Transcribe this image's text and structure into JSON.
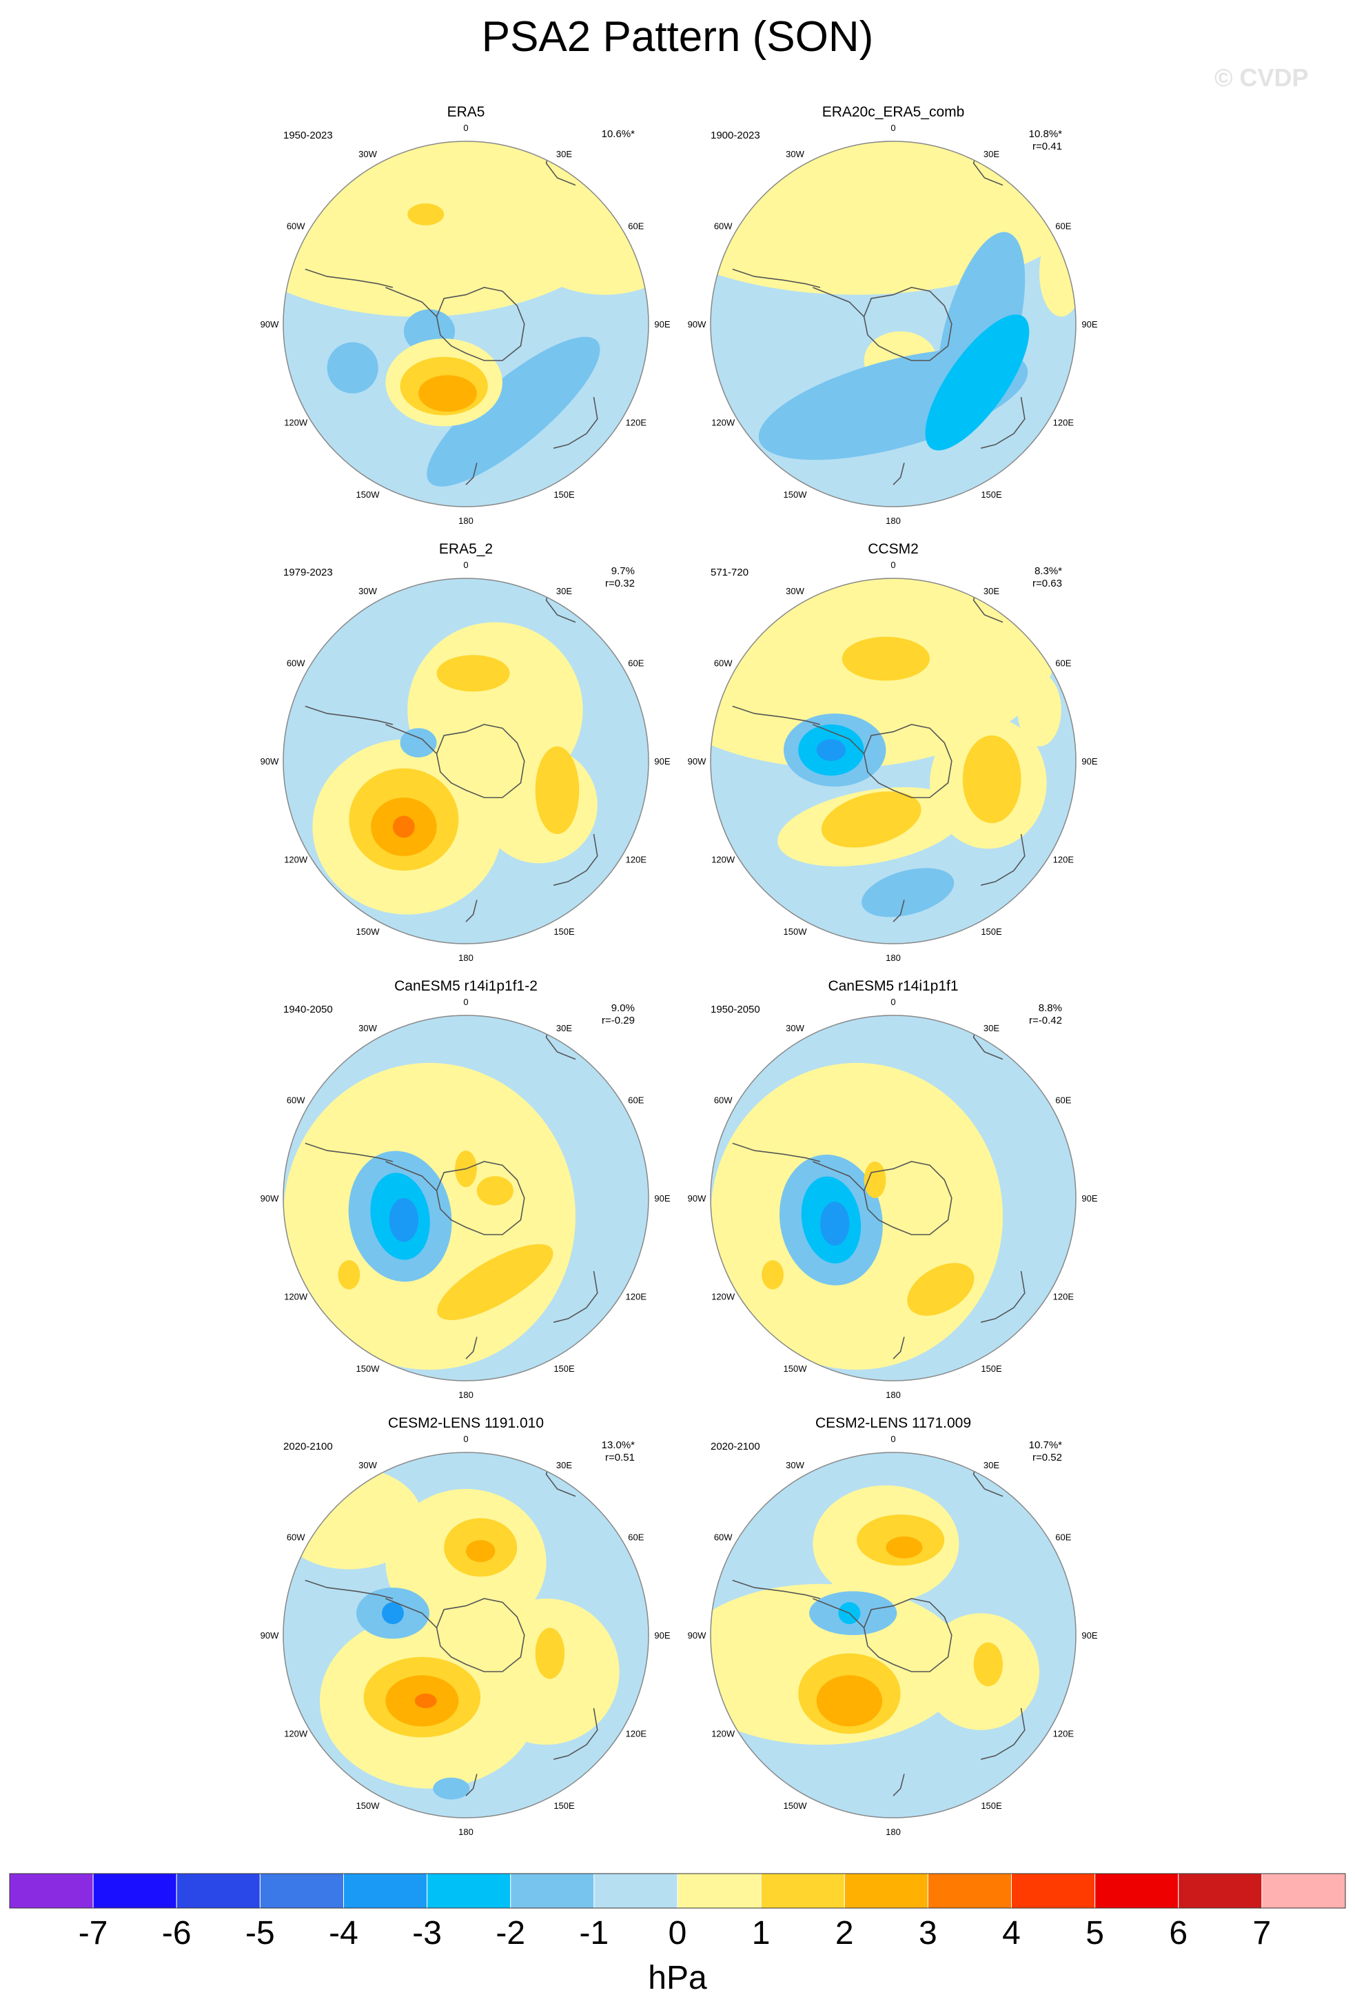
{
  "title": "PSA2 Pattern (SON)",
  "watermark": "© CVDP",
  "units": "hPa",
  "colors": {
    "levels": [
      "#8a2be2",
      "#1b0fff",
      "#2a47e8",
      "#3b78e8",
      "#1a9af5",
      "#00c0f8",
      "#77c4ef",
      "#b6dff2",
      "#fff79a",
      "#ffd52e",
      "#ffb000",
      "#ff7a00",
      "#ff3b00",
      "#ee0000",
      "#cc1a1a",
      "#ffb0b0"
    ],
    "land_outline": "#555555"
  },
  "colorbar": {
    "labels": [
      "-7",
      "-6",
      "-5",
      "-4",
      "-3",
      "-2",
      "-1",
      "0",
      "1",
      "2",
      "3",
      "4",
      "5",
      "6",
      "7"
    ]
  },
  "longitude_labels": [
    "0",
    "30E",
    "60E",
    "90E",
    "120E",
    "150E",
    "180",
    "150W",
    "120W",
    "90W",
    "60W",
    "30W"
  ],
  "panels": [
    {
      "name": "ERA5",
      "period": "1950-2023",
      "variance": "10.6%*",
      "corr": "",
      "blobs": [
        {
          "t": "yellow",
          "c": [
            0.37,
            0.12
          ],
          "r": [
            0.62,
            0.36
          ],
          "a": 0
        },
        {
          "t": "yellow",
          "c": [
            0.88,
            0.22
          ],
          "r": [
            0.26,
            0.2
          ],
          "a": 0
        },
        {
          "t": "yellow",
          "c": [
            0.84,
            0.02
          ],
          "r": [
            0.12,
            0.06
          ],
          "a": 0
        },
        {
          "t": "gold",
          "c": [
            0.39,
            0.2
          ],
          "r": [
            0.05,
            0.03
          ],
          "a": 0
        },
        {
          "t": "blue",
          "c": [
            0.4,
            0.52
          ],
          "r": [
            0.07,
            0.06
          ],
          "a": 0
        },
        {
          "t": "blue",
          "c": [
            0.19,
            0.62
          ],
          "r": [
            0.07,
            0.07
          ],
          "a": 0
        },
        {
          "t": "blue",
          "c": [
            0.63,
            0.74
          ],
          "r": [
            0.3,
            0.09
          ],
          "a": -40
        },
        {
          "t": "yellow",
          "c": [
            0.44,
            0.66
          ],
          "r": [
            0.16,
            0.12
          ],
          "a": 0
        },
        {
          "t": "gold",
          "c": [
            0.44,
            0.67
          ],
          "r": [
            0.12,
            0.08
          ],
          "a": 0
        },
        {
          "t": "orange",
          "c": [
            0.45,
            0.69
          ],
          "r": [
            0.08,
            0.05
          ],
          "a": 0
        }
      ]
    },
    {
      "name": "ERA20c_ERA5_comb",
      "period": "1900-2023",
      "variance": "10.8%*",
      "corr": "r=0.41",
      "blobs": [
        {
          "t": "yellow",
          "c": [
            0.4,
            0.1
          ],
          "r": [
            0.68,
            0.32
          ],
          "a": 0
        },
        {
          "t": "yellow",
          "c": [
            0.96,
            0.36
          ],
          "r": [
            0.06,
            0.12
          ],
          "a": 0
        },
        {
          "t": "yellow",
          "c": [
            0.52,
            0.6
          ],
          "r": [
            0.1,
            0.08
          ],
          "a": 0
        },
        {
          "t": "blue",
          "c": [
            0.5,
            0.72
          ],
          "r": [
            0.38,
            0.12
          ],
          "a": -15
        },
        {
          "t": "blue",
          "c": [
            0.74,
            0.52
          ],
          "r": [
            0.1,
            0.28
          ],
          "a": 15
        },
        {
          "t": "blue2",
          "c": [
            0.73,
            0.66
          ],
          "r": [
            0.08,
            0.22
          ],
          "a": 35
        }
      ]
    },
    {
      "name": "ERA5_2",
      "period": "1979-2023",
      "variance": "9.7%",
      "corr": "r=0.32",
      "blobs": [
        {
          "t": "yellow",
          "c": [
            0.58,
            0.36
          ],
          "r": [
            0.24,
            0.24
          ],
          "a": 0
        },
        {
          "t": "yellow",
          "c": [
            0.7,
            0.62
          ],
          "r": [
            0.16,
            0.16
          ],
          "a": 0
        },
        {
          "t": "yellow",
          "c": [
            0.34,
            0.68
          ],
          "r": [
            0.26,
            0.24
          ],
          "a": 0
        },
        {
          "t": "gold",
          "c": [
            0.52,
            0.26
          ],
          "r": [
            0.1,
            0.05
          ],
          "a": 0
        },
        {
          "t": "gold",
          "c": [
            0.75,
            0.58
          ],
          "r": [
            0.06,
            0.12
          ],
          "a": 0
        },
        {
          "t": "blue",
          "c": [
            0.37,
            0.45
          ],
          "r": [
            0.05,
            0.04
          ],
          "a": 0
        },
        {
          "t": "gold",
          "c": [
            0.33,
            0.66
          ],
          "r": [
            0.15,
            0.14
          ],
          "a": 0
        },
        {
          "t": "orange",
          "c": [
            0.33,
            0.68
          ],
          "r": [
            0.09,
            0.08
          ],
          "a": 0
        },
        {
          "t": "orange2",
          "c": [
            0.33,
            0.68
          ],
          "r": [
            0.03,
            0.03
          ],
          "a": 0
        }
      ]
    },
    {
      "name": "CCSM2",
      "period": "571-720",
      "variance": "8.3%*",
      "corr": "r=0.63",
      "blobs": [
        {
          "t": "yellow",
          "c": [
            0.35,
            0.18
          ],
          "r": [
            0.6,
            0.34
          ],
          "a": 0
        },
        {
          "t": "yellow",
          "c": [
            0.9,
            0.36
          ],
          "r": [
            0.06,
            0.1
          ],
          "a": 0
        },
        {
          "t": "yellow",
          "c": [
            0.76,
            0.56
          ],
          "r": [
            0.16,
            0.18
          ],
          "a": 0
        },
        {
          "t": "gold",
          "c": [
            0.48,
            0.22
          ],
          "r": [
            0.12,
            0.06
          ],
          "a": 0
        },
        {
          "t": "gold",
          "c": [
            0.77,
            0.55
          ],
          "r": [
            0.08,
            0.12
          ],
          "a": 0
        },
        {
          "t": "yellow",
          "c": [
            0.44,
            0.68
          ],
          "r": [
            0.26,
            0.1
          ],
          "a": -10
        },
        {
          "t": "gold",
          "c": [
            0.44,
            0.66
          ],
          "r": [
            0.14,
            0.07
          ],
          "a": -15
        },
        {
          "t": "blue",
          "c": [
            0.34,
            0.47
          ],
          "r": [
            0.14,
            0.1
          ],
          "a": 0
        },
        {
          "t": "blue2",
          "c": [
            0.33,
            0.47
          ],
          "r": [
            0.09,
            0.07
          ],
          "a": 0
        },
        {
          "t": "blue3",
          "c": [
            0.33,
            0.47
          ],
          "r": [
            0.04,
            0.03
          ],
          "a": 0
        },
        {
          "t": "blue",
          "c": [
            0.54,
            0.86
          ],
          "r": [
            0.13,
            0.06
          ],
          "a": -15
        }
      ]
    },
    {
      "name": "CanESM5 r14i1p1f1-2",
      "period": "1940-2050",
      "variance": "9.0%",
      "corr": "r=-0.29",
      "blobs": [
        {
          "t": "yellow",
          "c": [
            0.4,
            0.55
          ],
          "r": [
            0.4,
            0.42
          ],
          "a": 0
        },
        {
          "t": "blue",
          "c": [
            0.32,
            0.55
          ],
          "r": [
            0.14,
            0.18
          ],
          "a": -10
        },
        {
          "t": "blue2",
          "c": [
            0.32,
            0.55
          ],
          "r": [
            0.08,
            0.12
          ],
          "a": -10
        },
        {
          "t": "blue3",
          "c": [
            0.33,
            0.56
          ],
          "r": [
            0.04,
            0.06
          ],
          "a": 0
        },
        {
          "t": "gold",
          "c": [
            0.5,
            0.42
          ],
          "r": [
            0.03,
            0.05
          ],
          "a": 0
        },
        {
          "t": "gold",
          "c": [
            0.58,
            0.48
          ],
          "r": [
            0.05,
            0.04
          ],
          "a": 0
        },
        {
          "t": "gold",
          "c": [
            0.58,
            0.73
          ],
          "r": [
            0.18,
            0.06
          ],
          "a": -30
        },
        {
          "t": "gold",
          "c": [
            0.18,
            0.71
          ],
          "r": [
            0.03,
            0.04
          ],
          "a": 0
        }
      ]
    },
    {
      "name": "CanESM5 r14i1p1f1",
      "period": "1950-2050",
      "variance": "8.8%",
      "corr": "r=-0.42",
      "blobs": [
        {
          "t": "yellow",
          "c": [
            0.4,
            0.55
          ],
          "r": [
            0.4,
            0.42
          ],
          "a": 0
        },
        {
          "t": "blue",
          "c": [
            0.33,
            0.56
          ],
          "r": [
            0.14,
            0.18
          ],
          "a": -10
        },
        {
          "t": "blue2",
          "c": [
            0.33,
            0.56
          ],
          "r": [
            0.08,
            0.12
          ],
          "a": -10
        },
        {
          "t": "blue3",
          "c": [
            0.34,
            0.57
          ],
          "r": [
            0.04,
            0.06
          ],
          "a": 0
        },
        {
          "t": "gold",
          "c": [
            0.45,
            0.45
          ],
          "r": [
            0.03,
            0.05
          ],
          "a": 0
        },
        {
          "t": "gold",
          "c": [
            0.63,
            0.75
          ],
          "r": [
            0.1,
            0.06
          ],
          "a": -30
        },
        {
          "t": "gold",
          "c": [
            0.17,
            0.71
          ],
          "r": [
            0.03,
            0.04
          ],
          "a": 0
        }
      ]
    },
    {
      "name": "CESM2-LENS 1191.010",
      "period": "2020-2100",
      "variance": "13.0%*",
      "corr": "r=0.51",
      "blobs": [
        {
          "t": "yellow",
          "c": [
            0.5,
            0.3
          ],
          "r": [
            0.22,
            0.2
          ],
          "a": 0
        },
        {
          "t": "yellow",
          "c": [
            0.72,
            0.6
          ],
          "r": [
            0.2,
            0.2
          ],
          "a": 0
        },
        {
          "t": "yellow",
          "c": [
            0.4,
            0.68
          ],
          "r": [
            0.3,
            0.24
          ],
          "a": 0
        },
        {
          "t": "yellow",
          "c": [
            0.18,
            0.18
          ],
          "r": [
            0.2,
            0.14
          ],
          "a": 0
        },
        {
          "t": "gold",
          "c": [
            0.54,
            0.26
          ],
          "r": [
            0.1,
            0.08
          ],
          "a": 0
        },
        {
          "t": "orange",
          "c": [
            0.54,
            0.27
          ],
          "r": [
            0.04,
            0.03
          ],
          "a": 0
        },
        {
          "t": "gold",
          "c": [
            0.73,
            0.55
          ],
          "r": [
            0.04,
            0.07
          ],
          "a": 0
        },
        {
          "t": "gold",
          "c": [
            0.38,
            0.67
          ],
          "r": [
            0.16,
            0.11
          ],
          "a": 0
        },
        {
          "t": "orange",
          "c": [
            0.38,
            0.68
          ],
          "r": [
            0.1,
            0.07
          ],
          "a": 0
        },
        {
          "t": "orange2",
          "c": [
            0.39,
            0.68
          ],
          "r": [
            0.03,
            0.02
          ],
          "a": 0
        },
        {
          "t": "blue",
          "c": [
            0.3,
            0.44
          ],
          "r": [
            0.1,
            0.07
          ],
          "a": 0
        },
        {
          "t": "blue3",
          "c": [
            0.3,
            0.44
          ],
          "r": [
            0.03,
            0.03
          ],
          "a": 0
        },
        {
          "t": "blue",
          "c": [
            0.46,
            0.92
          ],
          "r": [
            0.05,
            0.03
          ],
          "a": 0
        }
      ]
    },
    {
      "name": "CESM2-LENS 1171.009",
      "period": "2020-2100",
      "variance": "10.7%*",
      "corr": "r=0.52",
      "blobs": [
        {
          "t": "yellow",
          "c": [
            0.48,
            0.25
          ],
          "r": [
            0.2,
            0.16
          ],
          "a": 0
        },
        {
          "t": "yellow",
          "c": [
            0.74,
            0.6
          ],
          "r": [
            0.16,
            0.16
          ],
          "a": 0
        },
        {
          "t": "yellow",
          "c": [
            0.3,
            0.58
          ],
          "r": [
            0.4,
            0.22
          ],
          "a": 0
        },
        {
          "t": "gold",
          "c": [
            0.52,
            0.24
          ],
          "r": [
            0.12,
            0.07
          ],
          "a": 0
        },
        {
          "t": "orange",
          "c": [
            0.53,
            0.26
          ],
          "r": [
            0.05,
            0.03
          ],
          "a": 0
        },
        {
          "t": "gold",
          "c": [
            0.76,
            0.58
          ],
          "r": [
            0.04,
            0.06
          ],
          "a": 0
        },
        {
          "t": "gold",
          "c": [
            0.38,
            0.66
          ],
          "r": [
            0.14,
            0.11
          ],
          "a": 0
        },
        {
          "t": "orange",
          "c": [
            0.38,
            0.68
          ],
          "r": [
            0.09,
            0.07
          ],
          "a": 0
        },
        {
          "t": "blue",
          "c": [
            0.39,
            0.44
          ],
          "r": [
            0.12,
            0.06
          ],
          "a": 0
        },
        {
          "t": "blue2",
          "c": [
            0.38,
            0.44
          ],
          "r": [
            0.03,
            0.03
          ],
          "a": 0
        }
      ]
    }
  ]
}
